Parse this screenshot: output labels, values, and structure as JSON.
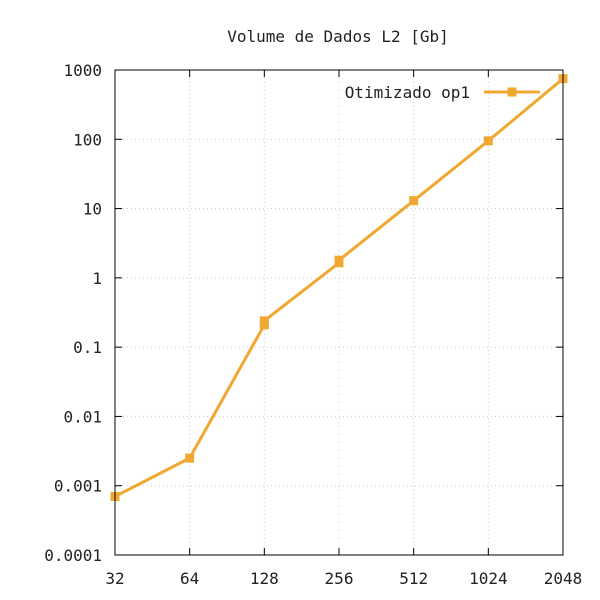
{
  "chart_data": {
    "type": "line",
    "title": "Volume de Dados L2 [Gb]",
    "xlabel": "",
    "ylabel": "",
    "x_scale": "log2",
    "y_scale": "log10",
    "x_ticks": [
      "32",
      "64",
      "128",
      "256",
      "512",
      "1024",
      "2048"
    ],
    "y_ticks": [
      "0.0001",
      "0.001",
      "0.01",
      "0.1",
      "1",
      "10",
      "100",
      "1000"
    ],
    "xlim": [
      32,
      2048
    ],
    "ylim": [
      0.0001,
      1000
    ],
    "grid": true,
    "legend_position": "top-right",
    "series": [
      {
        "name": "Otimizado op1",
        "color": "#f0a830",
        "marker": "square",
        "points": [
          {
            "x": 32,
            "y": 0.0007
          },
          {
            "x": 64,
            "y": 0.0025
          },
          {
            "x": 128,
            "y": 0.21
          },
          {
            "x": 128,
            "y": 0.24
          },
          {
            "x": 256,
            "y": 1.65
          },
          {
            "x": 256,
            "y": 1.8
          },
          {
            "x": 512,
            "y": 13
          },
          {
            "x": 1024,
            "y": 95
          },
          {
            "x": 2048,
            "y": 750
          }
        ]
      }
    ]
  }
}
